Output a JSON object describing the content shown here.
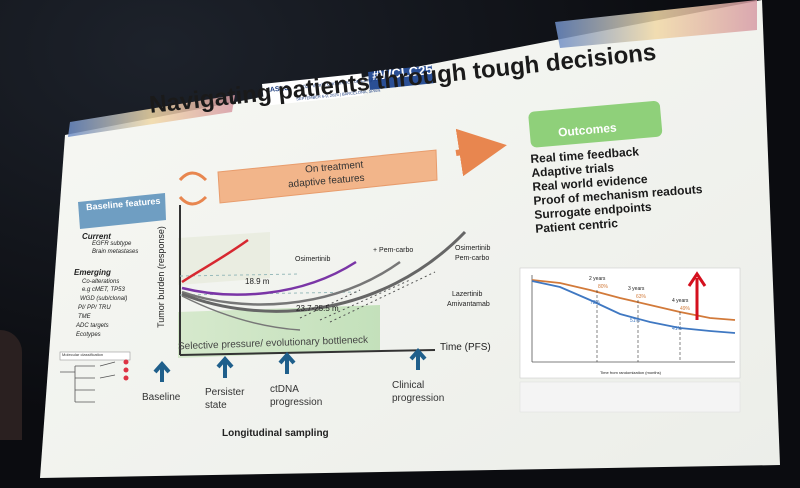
{
  "header": {
    "conference_name": "2025 World Conference on Lung Cancer",
    "conference_dates": "SEPTEMBER 6-9, 2025 | BARCELONA, SPAIN",
    "organizer": "IASLC",
    "hashtag": "#WCLC25"
  },
  "slide": {
    "title": "Navigating patients through tough decisions",
    "on_treatment_label_1": "On treatment",
    "on_treatment_label_2": "adaptive features",
    "outcomes_label": "Outcomes",
    "baseline_features_label": "Baseline features",
    "current": {
      "heading": "Current",
      "items": [
        "EGFR subtype",
        "Brain metastases"
      ]
    },
    "emerging": {
      "heading": "Emerging",
      "items": [
        "Co-alterations",
        "e.g cMET, TP53",
        "WGD (sub/clonal)",
        "PI/ PP/ TRU",
        "TME",
        "ADC targets",
        "Ecotypes"
      ]
    },
    "mini_tree_title": "Molecular classification",
    "outcomes": [
      "Real time feedback",
      "Adaptive trials",
      "Real world evidence",
      "Proof of mechanism readouts",
      "Surrogate endpoints",
      "Patient centric"
    ],
    "chart": {
      "y_axis_label": "Tumor burden (response)",
      "x_axis_label": "Time (PFS)",
      "bottleneck_label": "Selective pressure/ evolutionary bottleneck",
      "labels": {
        "osimertinib": "Osimertinib",
        "pem_carbo": "+ Pem-carbo",
        "osi_pem_1": "Osimertinib",
        "osi_pem_2": "Pem-carbo",
        "laz_1": "Lazertinib",
        "laz_2": "Amivantamab",
        "time1": "18.9 m",
        "time2": "23.7-25.5 m"
      }
    },
    "timeline": [
      {
        "l1": "Baseline",
        "l2": ""
      },
      {
        "l1": "Persister",
        "l2": "state"
      },
      {
        "l1": "ctDNA",
        "l2": "progression"
      },
      {
        "l1": "Clinical",
        "l2": "progression"
      }
    ],
    "sampling_label": "Longitudinal sampling",
    "km": {
      "labels": {
        "y2": "2 years",
        "y3": "3 years",
        "y4": "4 years"
      },
      "pct_upper": [
        "80%",
        "63%",
        "49%"
      ],
      "pct_lower": [
        "72%",
        "51%",
        "41%"
      ],
      "x_axis_title": "Time from randomization (months)"
    }
  },
  "colors": {
    "slide_bg": "#f5f6f2",
    "title": "#1a1a1a",
    "orange_box": "#f2b58a",
    "green_box": "#8fd07a",
    "blue_box": "#6f9ec2",
    "arrow_blue": "#1f5f8b",
    "red_curve": "#d72830",
    "purple_curve": "#7a35a6",
    "gray_curve": "#666666",
    "km_upper": "#d27a3a",
    "km_lower": "#3f78c2"
  }
}
